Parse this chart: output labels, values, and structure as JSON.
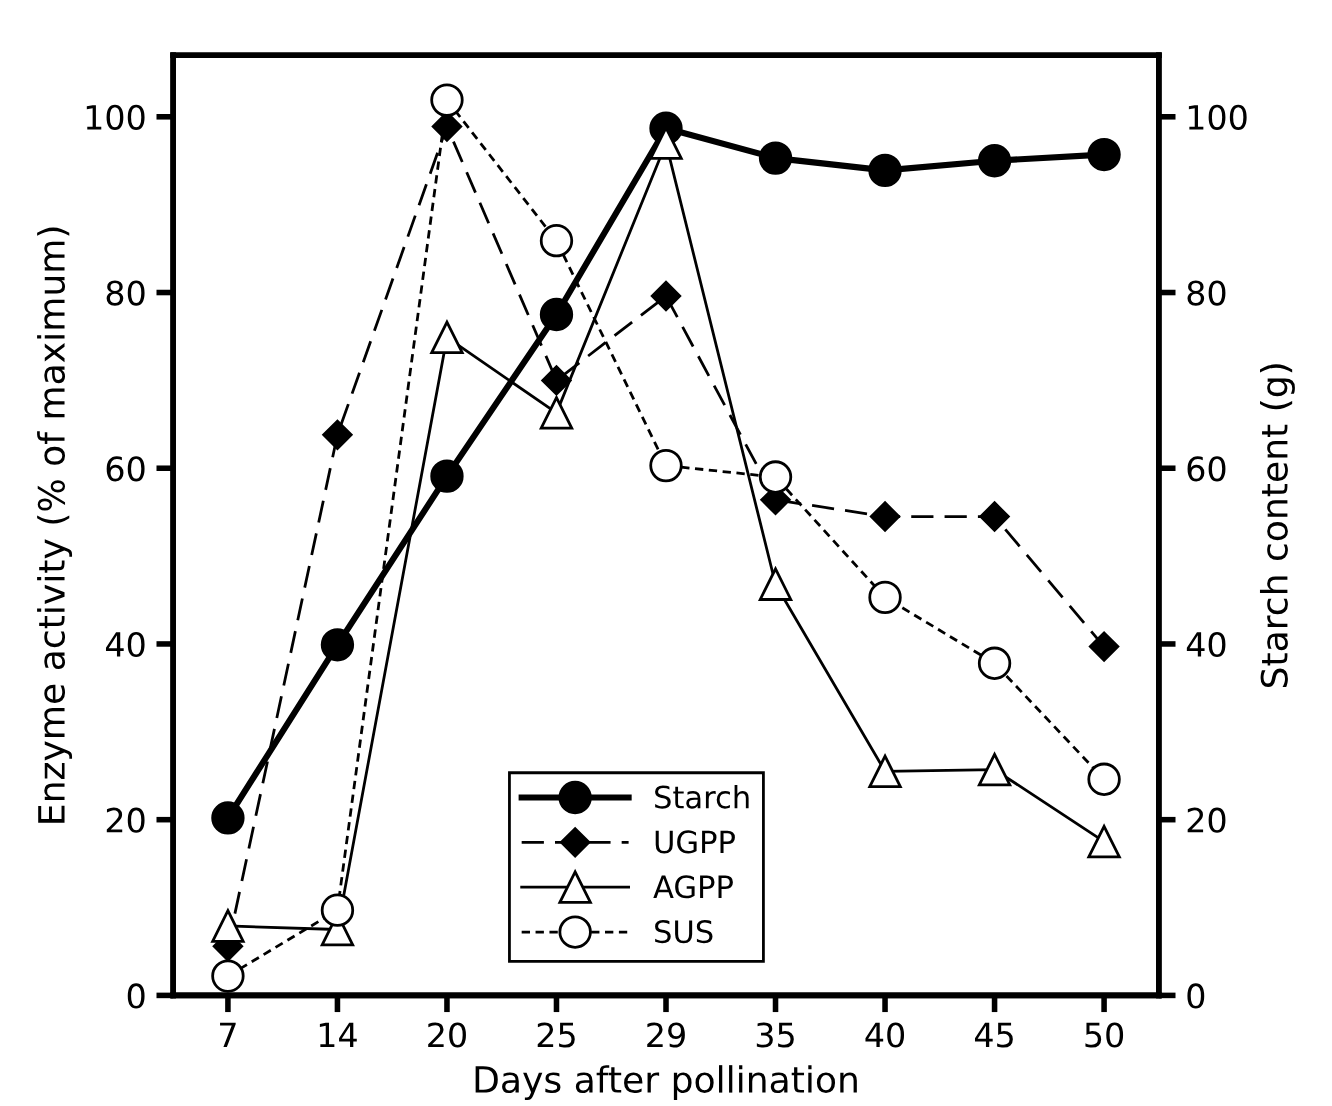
{
  "chart_data": {
    "type": "line",
    "xlabel": "Days after pollination",
    "ylabel": "Enzyme activity (% of maximum)",
    "y2label": "Starch content (g)",
    "categories": [
      "7",
      "14",
      "20",
      "25",
      "29",
      "35",
      "40",
      "45",
      "50"
    ],
    "series": [
      {
        "name": "Starch",
        "color": "#000000",
        "axis": "y2",
        "marker": "circle",
        "line_style": "solid",
        "values": [
          20.2,
          39.9,
          59.1,
          77.5,
          98.7,
          95.3,
          93.9,
          95.0,
          95.7
        ]
      },
      {
        "name": "UGPP",
        "color": "#000000",
        "marker": "diamond",
        "line_style": "dashed",
        "values": [
          5.6,
          63.8,
          98.9,
          70.0,
          79.6,
          56.4,
          54.5,
          54.5,
          39.7
        ]
      },
      {
        "name": "AGPP",
        "color": "#000000",
        "marker": "triangle",
        "line_style": "solid",
        "values": [
          7.9,
          7.5,
          74.9,
          66.3,
          97.0,
          46.8,
          25.5,
          25.7,
          17.5
        ]
      },
      {
        "name": "SUS",
        "color": "#000000",
        "marker": "circle",
        "line_style": "dotted",
        "values": [
          2.2,
          9.7,
          101.9,
          85.9,
          60.3,
          59.0,
          45.3,
          37.8,
          24.6
        ]
      }
    ],
    "ylim": [
      0,
      107
    ],
    "yticks": [
      0,
      20,
      40,
      60,
      80,
      100
    ],
    "y2lim": [
      0,
      107
    ],
    "y2ticks": [
      0,
      20,
      40,
      60,
      80,
      100
    ],
    "grid": false,
    "legend": "bottom center"
  }
}
